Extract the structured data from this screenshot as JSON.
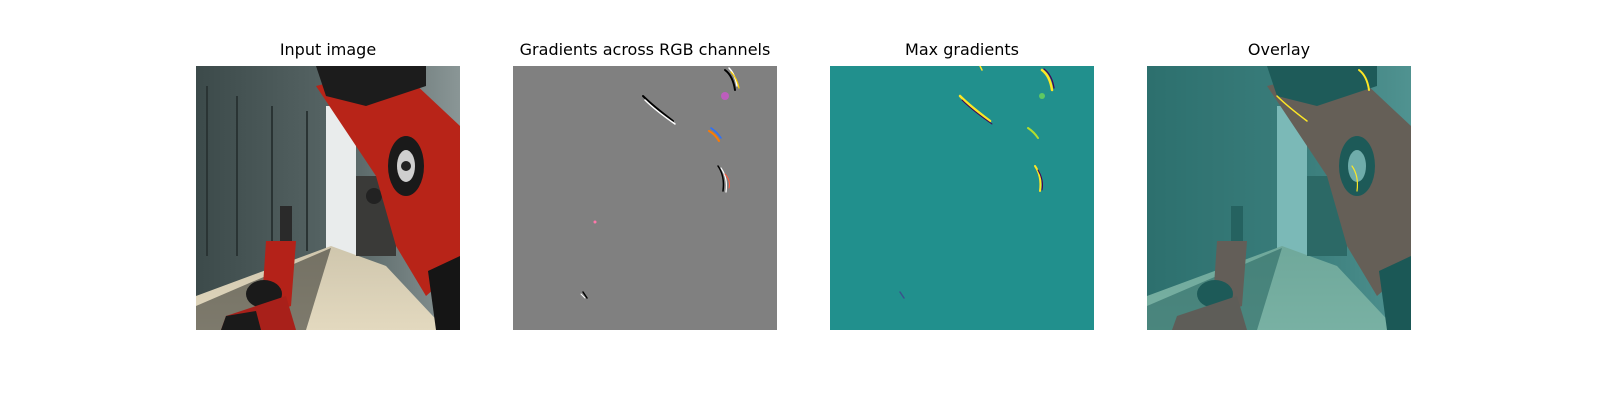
{
  "figure": {
    "panels": [
      {
        "id": "input",
        "title": "Input image"
      },
      {
        "id": "gradients-rgb",
        "title": "Gradients across RGB channels"
      },
      {
        "id": "max-gradients",
        "title": "Max gradients"
      },
      {
        "id": "overlay",
        "title": "Overlay"
      }
    ]
  },
  "colors": {
    "figure_background": "#ffffff",
    "gradient_neutral_gray": "#808080",
    "viridis_background_teal": "#21908d",
    "overlay_tint": "#21908d",
    "robot_arm_red": "#b82418",
    "floor_beige": "#d8ceb4"
  }
}
